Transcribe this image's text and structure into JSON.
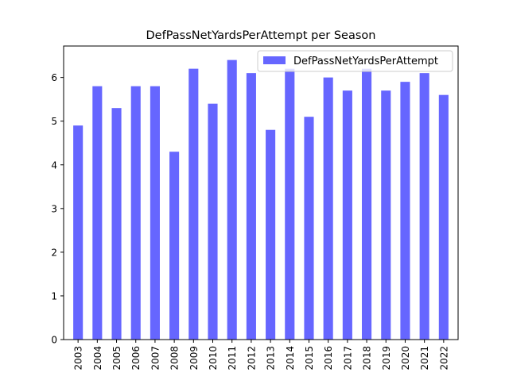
{
  "chart_data": {
    "type": "bar",
    "title": "DefPassNetYardsPerAttempt per Season",
    "xlabel": "",
    "ylabel": "",
    "categories": [
      "2003",
      "2004",
      "2005",
      "2006",
      "2007",
      "2008",
      "2009",
      "2010",
      "2011",
      "2012",
      "2013",
      "2014",
      "2015",
      "2016",
      "2017",
      "2018",
      "2019",
      "2020",
      "2021",
      "2022"
    ],
    "series": [
      {
        "name": "DefPassNetYardsPerAttempt",
        "color": "#6666ff",
        "values": [
          4.9,
          5.8,
          5.3,
          5.8,
          5.8,
          4.3,
          6.2,
          5.4,
          6.4,
          6.1,
          4.8,
          6.2,
          5.1,
          6.0,
          5.7,
          6.2,
          5.7,
          5.9,
          6.1,
          5.6
        ]
      }
    ],
    "ylim": [
      0,
      6.72
    ],
    "yticks": [
      0,
      1,
      2,
      3,
      4,
      5,
      6
    ],
    "grid": false,
    "legend_position": "top-right"
  }
}
